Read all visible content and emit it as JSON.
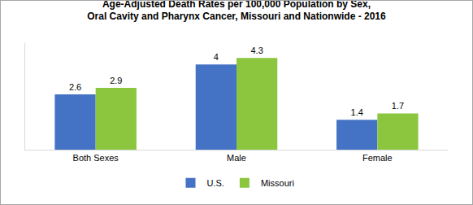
{
  "chart_data": {
    "type": "bar",
    "title": "Age-Adjusted Death Rates per 100,000 Population by Sex,\nOral Cavity and Pharynx Cancer, Missouri and Nationwide - 2016",
    "categories": [
      "Both Sexes",
      "Male",
      "Female"
    ],
    "series": [
      {
        "name": "U.S.",
        "color": "#4472c4",
        "values": [
          2.6,
          4,
          1.4
        ]
      },
      {
        "name": "Missouri",
        "color": "#8cc63f",
        "values": [
          2.9,
          4.3,
          1.7
        ]
      }
    ],
    "ylim": [
      0,
      5
    ],
    "yticks": [],
    "grid": false,
    "legend": "bottom",
    "data_labels": true,
    "tick_labels": "x"
  }
}
